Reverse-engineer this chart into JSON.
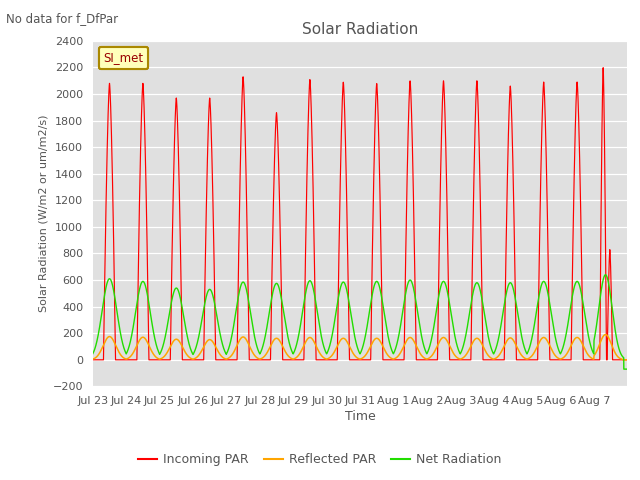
{
  "title": "Solar Radiation",
  "suptitle": "No data for f_DfPar",
  "xlabel": "Time",
  "ylabel": "Solar Radiation (W/m2 or um/m2/s)",
  "ylim": [
    -200,
    2400
  ],
  "legend_label": "SI_met",
  "line_colors": {
    "incoming": "#FF0000",
    "reflected": "#FFA500",
    "net": "#22DD00"
  },
  "legend_entries": [
    "Incoming PAR",
    "Reflected PAR",
    "Net Radiation"
  ],
  "num_days": 16,
  "bg_color": "#E0E0E0",
  "grid_color": "#FFFFFF",
  "tick_labels": [
    "Jul 23",
    "Jul 24",
    "Jul 25",
    "Jul 26",
    "Jul 27",
    "Jul 28",
    "Jul 29",
    "Jul 30",
    "Jul 31",
    "Aug 1",
    "Aug 2",
    "Aug 3",
    "Aug 4",
    "Aug 5",
    "Aug 6",
    "Aug 7"
  ],
  "incoming_peaks": [
    2080,
    2080,
    1970,
    1970,
    2130,
    1860,
    2110,
    2090,
    2080,
    2100,
    2100,
    2100,
    2060,
    2090,
    2090,
    2200
  ],
  "net_peaks": [
    610,
    590,
    540,
    530,
    585,
    575,
    595,
    585,
    590,
    600,
    590,
    580,
    580,
    590,
    590,
    640
  ],
  "reflected_peaks": [
    175,
    170,
    155,
    152,
    172,
    162,
    168,
    162,
    162,
    168,
    168,
    162,
    165,
    168,
    168,
    190
  ],
  "night_incoming": 0,
  "night_net": -70,
  "night_reflected": 0
}
